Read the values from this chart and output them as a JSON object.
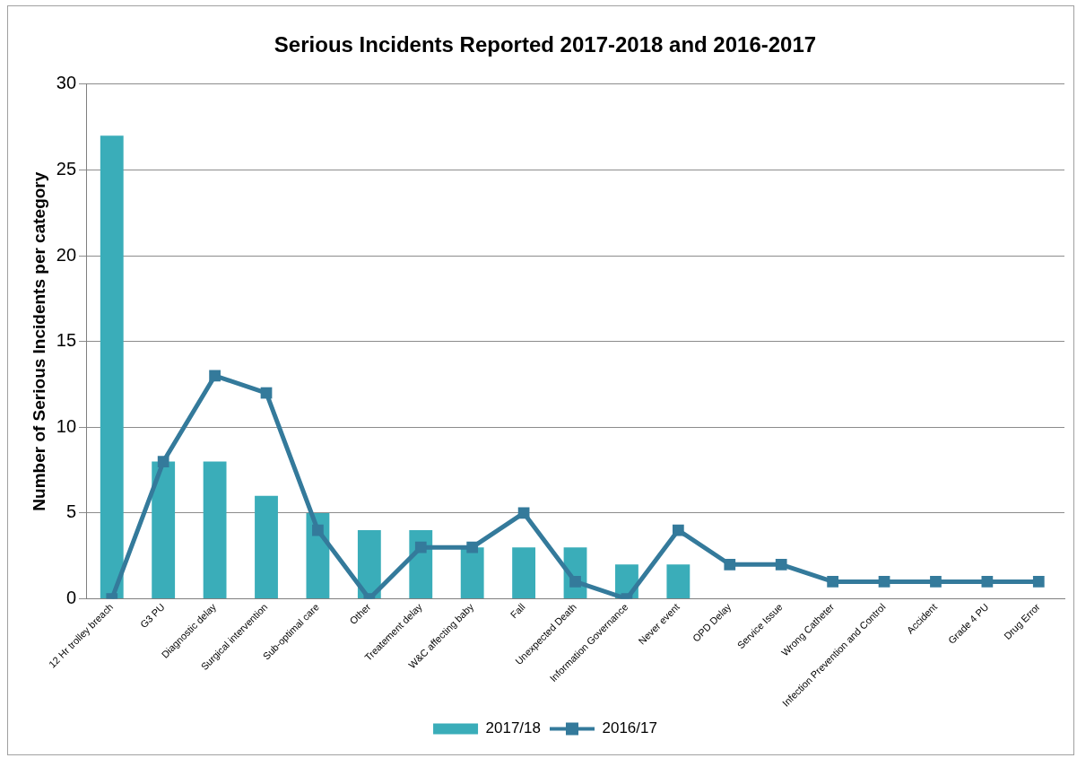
{
  "chart_data": {
    "type": "bar",
    "title": "Serious Incidents Reported 2017-2018 and 2016-2017",
    "ylabel": "Number of Serious Incidents per category",
    "categories": [
      "12 Hr trolley breach",
      "G3 PU",
      "Diagnostic delay",
      "Surgical intervention",
      "Sub-optimal care",
      "Other",
      "Treatement delay",
      "W&C affecting baby",
      "Fall",
      "Unexpected Death",
      "Information Governance",
      "Never event",
      "OPD Delay",
      "Service Issue",
      "Wrong Catheter",
      "Infection Prevention and Control",
      "Accident",
      "Grade 4 PU",
      "Drug Error"
    ],
    "series": [
      {
        "name": "2017/18",
        "color": "#3aadb9",
        "values": [
          27,
          8,
          8,
          6,
          5,
          4,
          4,
          3,
          3,
          3,
          2,
          2,
          0,
          0,
          0,
          0,
          0,
          0,
          0
        ]
      },
      {
        "name": "2016/17",
        "type": "line",
        "color": "#347a9b",
        "marker": "square",
        "values": [
          0,
          8,
          13,
          12,
          4,
          0,
          3,
          3,
          5,
          1,
          0,
          4,
          2,
          2,
          1,
          1,
          1,
          1,
          1
        ]
      }
    ],
    "ylim": [
      0,
      30
    ],
    "yticks": [
      0,
      5,
      10,
      15,
      20,
      25,
      30
    ],
    "grid": "y",
    "legend": "bottom"
  }
}
